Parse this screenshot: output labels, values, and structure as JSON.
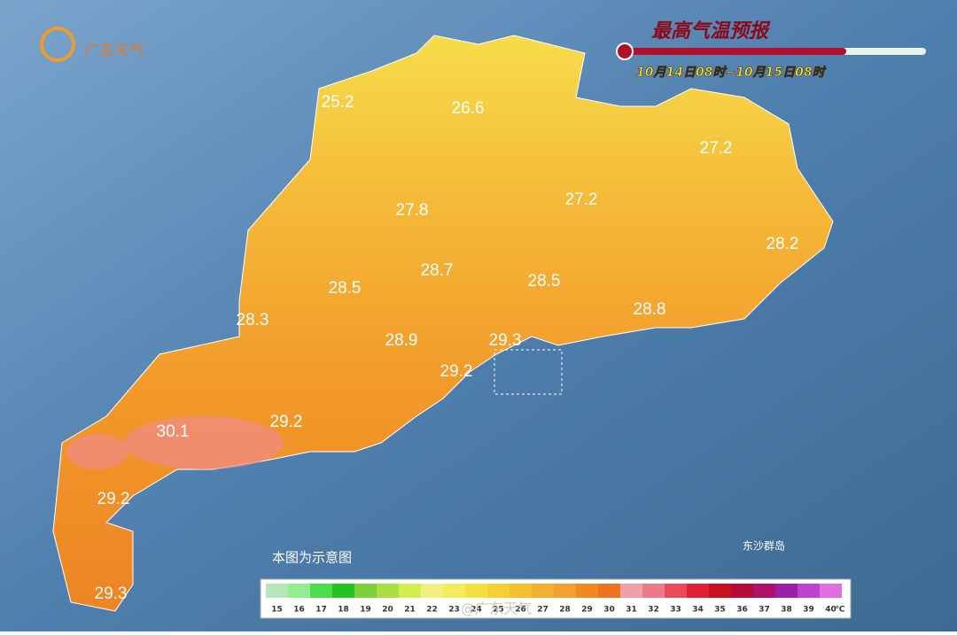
{
  "header": {
    "logo": "广东天气",
    "title": "最高气温预报",
    "subtitle": "10月14日08时~10月15日08时"
  },
  "labels": [
    25.2,
    26.6,
    27.2,
    27.8,
    27.2,
    28.2,
    28.7,
    28.5,
    28.5,
    28.3,
    28.8,
    28.9,
    29.3,
    29.2,
    30.1,
    29.2,
    29.2,
    29.3
  ],
  "note": "本图为示意图",
  "island": "东沙群岛",
  "watermark": "@广东天气",
  "legend": {
    "unit": "℃",
    "items": [
      {
        "value": 15,
        "color": "#b8e6b8"
      },
      {
        "value": 16,
        "color": "#90ee90"
      },
      {
        "value": 17,
        "color": "#4cdc4c"
      },
      {
        "value": 18,
        "color": "#22c422"
      },
      {
        "value": 19,
        "color": "#7ecf3c"
      },
      {
        "value": 20,
        "color": "#a8e040"
      },
      {
        "value": 21,
        "color": "#d4ee50"
      },
      {
        "value": 22,
        "color": "#f0f080"
      },
      {
        "value": 23,
        "color": "#f4ec5a"
      },
      {
        "value": 24,
        "color": "#f6e040"
      },
      {
        "value": 25,
        "color": "#f6d030"
      },
      {
        "value": 26,
        "color": "#f5c030"
      },
      {
        "value": 27,
        "color": "#f4b030"
      },
      {
        "value": 28,
        "color": "#f3a030"
      },
      {
        "value": 29,
        "color": "#f08a20"
      },
      {
        "value": 30,
        "color": "#ec7420"
      },
      {
        "value": 31,
        "color": "#f0a0a8"
      },
      {
        "value": 32,
        "color": "#ec7a88"
      },
      {
        "value": 33,
        "color": "#e84a5a"
      },
      {
        "value": 34,
        "color": "#e02030"
      },
      {
        "value": 35,
        "color": "#cc1020"
      },
      {
        "value": 36,
        "color": "#b80a38"
      },
      {
        "value": 37,
        "color": "#b0106a"
      },
      {
        "value": 38,
        "color": "#9a20a8"
      },
      {
        "value": 39,
        "color": "#c040d0"
      },
      {
        "value": 40,
        "color": "#e070e0"
      }
    ]
  }
}
